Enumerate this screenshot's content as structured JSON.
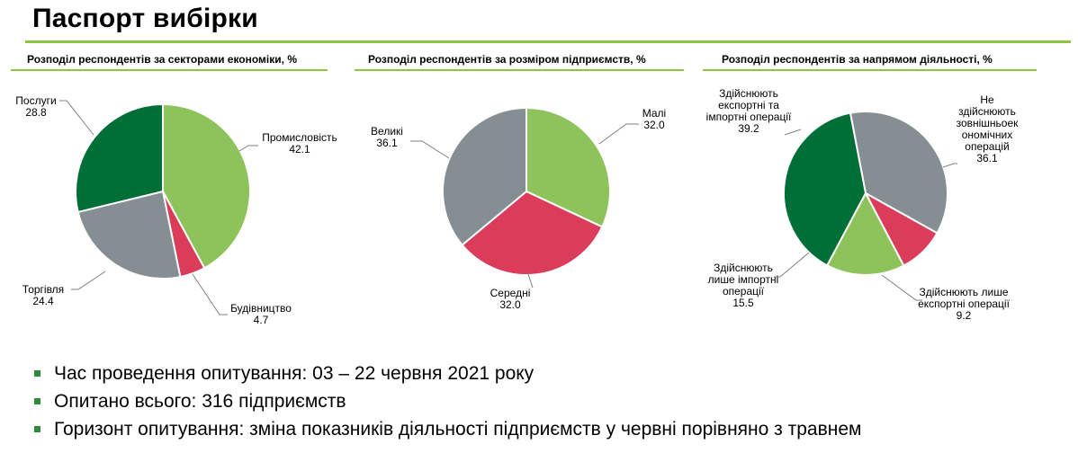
{
  "page": {
    "title": "Паспорт вибірки",
    "accent_color": "#8dc63f"
  },
  "bullets": [
    "Час проведення опитування: 03 – 22 червня 2021 року",
    "Опитано всього: 316 підприємств",
    "Горизонт опитування: зміна показників діяльності підприємств у червні порівняно з травнем"
  ],
  "chart_data": [
    {
      "type": "pie",
      "title": "Розподіл респондентів за секторами економіки, %",
      "slices": [
        {
          "label": [
            "Промисловість"
          ],
          "value": 42.1,
          "value_text": "42.1",
          "color": "#8dc35a"
        },
        {
          "label": [
            "Будівництво"
          ],
          "value": 4.7,
          "value_text": "4.7",
          "color": "#db3c5a"
        },
        {
          "label": [
            "Торгівля"
          ],
          "value": 24.4,
          "value_text": "24.4",
          "color": "#858f93"
        },
        {
          "label": [
            "Послуги"
          ],
          "value": 28.8,
          "value_text": "28.8",
          "color": "#006e37"
        }
      ]
    },
    {
      "type": "pie",
      "title": "Розподіл респондентів за розміром підприємств, %",
      "slices": [
        {
          "label": [
            "Малі"
          ],
          "value": 32.0,
          "value_text": "32.0",
          "color": "#8dc35a"
        },
        {
          "label": [
            "Середні"
          ],
          "value": 32.0,
          "value_text": "32.0",
          "color": "#db3c5a"
        },
        {
          "label": [
            "Великі"
          ],
          "value": 36.1,
          "value_text": "36.1",
          "color": "#858f93"
        }
      ]
    },
    {
      "type": "pie",
      "title": "Розподіл респондентів за напрямом діяльності, %",
      "slices": [
        {
          "label": [
            "Не",
            "здійснюють",
            "зовнішньоек",
            "ономічних",
            "операцій"
          ],
          "value": 36.1,
          "value_text": "36.1",
          "color": "#858f93"
        },
        {
          "label": [
            "Здійснюють лише",
            "експортні операції"
          ],
          "value": 9.2,
          "value_text": "9.2",
          "color": "#db3c5a"
        },
        {
          "label": [
            "Здійснюють",
            "лише імпортні",
            "операції"
          ],
          "value": 15.5,
          "value_text": "15.5",
          "color": "#8dc35a"
        },
        {
          "label": [
            "Здійснюють",
            "експортні та",
            "імпортні операції"
          ],
          "value": 39.2,
          "value_text": "39.2",
          "color": "#006e37"
        }
      ]
    }
  ]
}
